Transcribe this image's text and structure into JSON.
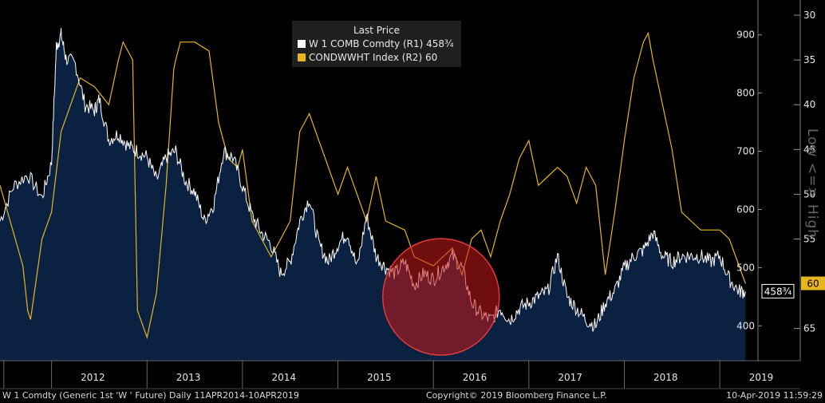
{
  "chart_data": {
    "type": "line",
    "title": "",
    "legend": {
      "title": "Last Price",
      "placement": "top-center",
      "entries": [
        {
          "label": "W 1 COMB Comdty  (R1) 458¾",
          "color": "#ffffff"
        },
        {
          "label": "CONDWWHT Index  (R2)   60",
          "color": "#e6b51f"
        }
      ]
    },
    "x_axis": {
      "labels": [
        "2012",
        "2013",
        "2014",
        "2015",
        "2016",
        "2017",
        "2018",
        "2019"
      ],
      "range": [
        "2011-06",
        "2019-04"
      ]
    },
    "right_axis_1": {
      "ticks": [
        400,
        500,
        600,
        700,
        800,
        900
      ],
      "range": [
        340,
        960
      ]
    },
    "right_axis_2": {
      "ticks": [
        30,
        35,
        40,
        45,
        50,
        55,
        65
      ],
      "range": [
        68.6,
        28.3
      ],
      "inverted": true
    },
    "last_values": {
      "r1": "458¾",
      "r2": "60"
    },
    "series": [
      {
        "name": "W 1 COMB Comdty",
        "axis": "R1",
        "color": "#ffffff",
        "style": "area",
        "fill": "#0b2142",
        "x": [
          2011.46,
          2011.6,
          2011.75,
          2011.9,
          2012.0,
          2012.05,
          2012.1,
          2012.15,
          2012.25,
          2012.35,
          2012.45,
          2012.5,
          2012.6,
          2012.7,
          2012.8,
          2012.9,
          2013.0,
          2013.1,
          2013.2,
          2013.3,
          2013.4,
          2013.5,
          2013.6,
          2013.7,
          2013.8,
          2013.9,
          2014.0,
          2014.1,
          2014.2,
          2014.3,
          2014.4,
          2014.5,
          2014.6,
          2014.7,
          2014.8,
          2014.9,
          2015.0,
          2015.1,
          2015.2,
          2015.3,
          2015.4,
          2015.5,
          2015.6,
          2015.7,
          2015.8,
          2015.9,
          2016.0,
          2016.1,
          2016.2,
          2016.3,
          2016.4,
          2016.5,
          2016.6,
          2016.7,
          2016.8,
          2016.9,
          2017.0,
          2017.1,
          2017.2,
          2017.3,
          2017.4,
          2017.5,
          2017.6,
          2017.7,
          2017.8,
          2017.9,
          2018.0,
          2018.1,
          2018.2,
          2018.3,
          2018.4,
          2018.5,
          2018.6,
          2018.7,
          2018.8,
          2018.9,
          2019.0,
          2019.1,
          2019.2,
          2019.27
        ],
        "y": [
          580,
          640,
          660,
          620,
          680,
          880,
          900,
          860,
          850,
          780,
          770,
          790,
          720,
          730,
          710,
          700,
          690,
          650,
          690,
          700,
          650,
          630,
          580,
          610,
          700,
          690,
          640,
          590,
          560,
          540,
          490,
          510,
          580,
          620,
          540,
          510,
          540,
          560,
          500,
          590,
          520,
          500,
          490,
          510,
          470,
          490,
          480,
          500,
          520,
          500,
          440,
          420,
          410,
          430,
          410,
          430,
          440,
          450,
          460,
          520,
          450,
          430,
          410,
          400,
          440,
          460,
          500,
          520,
          530,
          560,
          520,
          510,
          520,
          520,
          520,
          510,
          520,
          480,
          460,
          458.75
        ]
      },
      {
        "name": "CONDWWHT Index",
        "axis": "R2",
        "color": "#e6b51f",
        "style": "line",
        "x": [
          2011.46,
          2011.7,
          2011.75,
          2011.78,
          2011.9,
          2012.0,
          2012.1,
          2012.3,
          2012.45,
          2012.6,
          2012.7,
          2012.75,
          2012.85,
          2012.9,
          2013.0,
          2013.1,
          2013.2,
          2013.28,
          2013.3,
          2013.35,
          2013.5,
          2013.65,
          2013.75,
          2013.85,
          2013.95,
          2014.0,
          2014.1,
          2014.3,
          2014.4,
          2014.5,
          2014.6,
          2014.7,
          2014.8,
          2014.9,
          2015.0,
          2015.1,
          2015.2,
          2015.3,
          2015.4,
          2015.5,
          2015.7,
          2015.8,
          2016.0,
          2016.2,
          2016.3,
          2016.4,
          2016.5,
          2016.6,
          2016.7,
          2016.8,
          2016.9,
          2017.0,
          2017.1,
          2017.2,
          2017.3,
          2017.4,
          2017.5,
          2017.6,
          2017.7,
          2017.8,
          2017.9,
          2018.0,
          2018.1,
          2018.2,
          2018.25,
          2018.3,
          2018.4,
          2018.5,
          2018.6,
          2018.7,
          2018.8,
          2018.9,
          2019.0,
          2019.1,
          2019.27
        ],
        "y": [
          49,
          58,
          63,
          64,
          55,
          52,
          43,
          37,
          38,
          40,
          35,
          33,
          35,
          63,
          66,
          61,
          49,
          36,
          35,
          33,
          33,
          34,
          42,
          46,
          47,
          45,
          53,
          57,
          55,
          53,
          43,
          41,
          44,
          47,
          50,
          47,
          50,
          53,
          48,
          53,
          54,
          57,
          58,
          56,
          59,
          55,
          54,
          57,
          53,
          50,
          46,
          44,
          49,
          48,
          47,
          48,
          51,
          47,
          49,
          59,
          52,
          44,
          37,
          33,
          32,
          35,
          40,
          45,
          52,
          53,
          54,
          54,
          54,
          55,
          60
        ]
      }
    ]
  },
  "footer": {
    "left": "W 1 Comdty (Generic 1st 'W ' Future)  Daily 11APR2014-10APR2019",
    "center": "Copyright© 2019 Bloomberg Finance L.P.",
    "right": "10-Apr-2019 11:59:29"
  },
  "side_label": "Low <=> High",
  "colors": {
    "background": "#000000",
    "area_fill": "#0b2142",
    "price_line": "#ffffff",
    "index_line": "#e6b51f",
    "highlight": "#b51e1e"
  }
}
